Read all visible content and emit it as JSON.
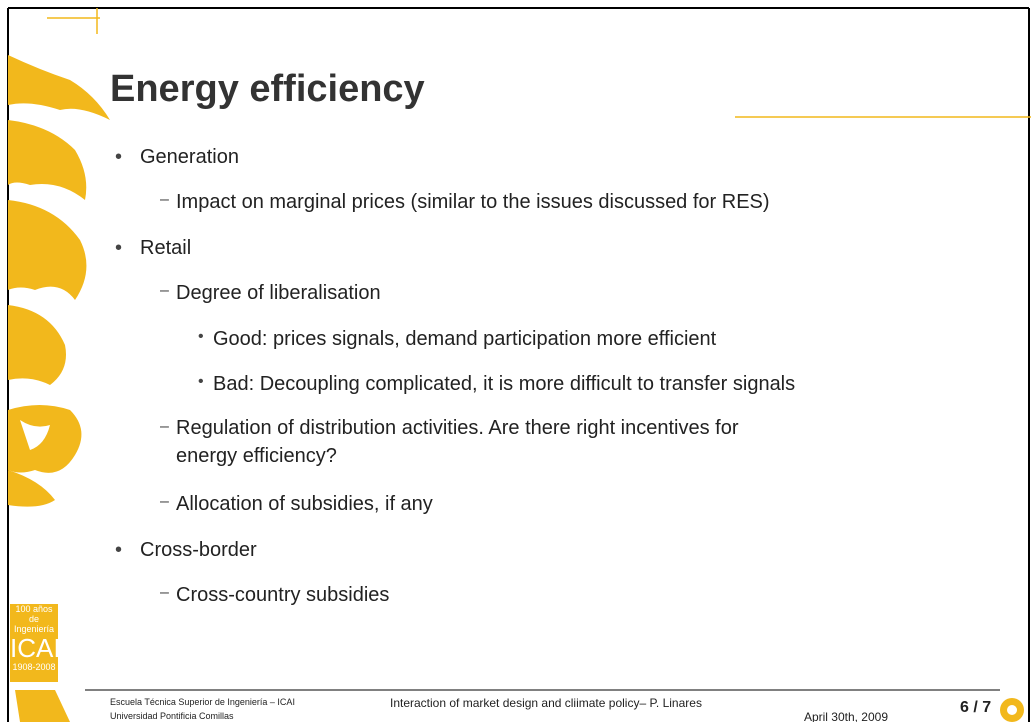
{
  "title": "Energy efficiency",
  "bullets": [
    {
      "text": "Generation",
      "children": [
        {
          "text": "Impact on marginal prices (similar to the issues discussed for RES)",
          "children": []
        }
      ]
    },
    {
      "text": "Retail",
      "children": [
        {
          "text": "Degree of liberalisation",
          "children": [
            "Good: prices signals, demand participation more efficient",
            "Bad: Decoupling complicated, it is more difficult to transfer signals"
          ]
        },
        {
          "text": "Regulation of distribution activities. Are there right incentives for energy efficiency?",
          "children": []
        },
        {
          "text": "Allocation of subsidies, if any",
          "children": []
        }
      ]
    },
    {
      "text": "Cross-border",
      "children": [
        {
          "text": "Cross-country subsidies",
          "children": []
        }
      ]
    }
  ],
  "footer": {
    "school": "Escuela Técnica Superior de Ingeniería – ICAI",
    "university": "Universidad Pontificia Comillas",
    "talk": "Interaction of market design and cliimate policy– P. Linares",
    "date": "April 30th, 2009",
    "page": "6 / 7"
  },
  "badge": {
    "line1": "100 años de",
    "line2": "Ingeniería",
    "name": "ICAI",
    "years": "1908-2008"
  }
}
